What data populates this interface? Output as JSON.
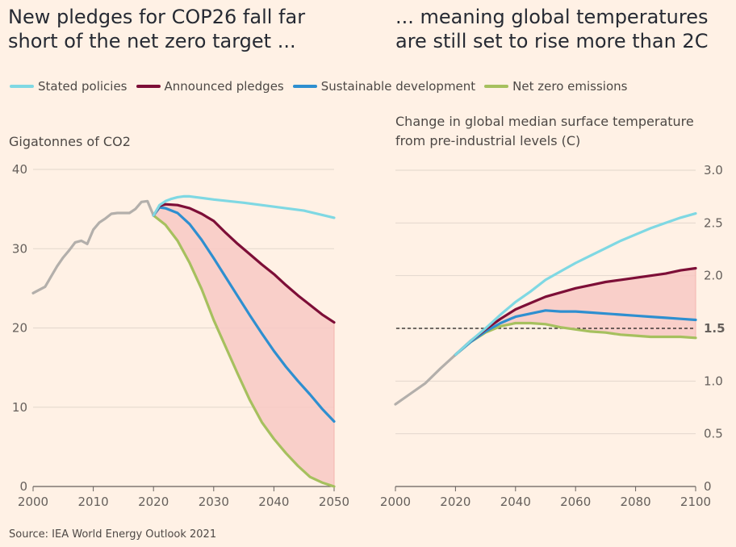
{
  "titles": {
    "left": "New pledges for COP26 fall far short of the net zero target ...",
    "right": "... meaning global temperatures are still set to rise more than 2C"
  },
  "legend": [
    {
      "label": "Stated policies",
      "color": "#7fd8e3"
    },
    {
      "label": "Announced pledges",
      "color": "#7d0e37"
    },
    {
      "label": "Sustainable development",
      "color": "#2e8fd0"
    },
    {
      "label": "Net zero emissions",
      "color": "#a6c05e"
    }
  ],
  "source": "Source: IEA World Energy Outlook 2021",
  "chart_data": [
    {
      "type": "line",
      "title": "New pledges for COP26 fall far short of the net zero target ...",
      "ylabel": "Gigatonnes of CO2",
      "xlim": [
        2000,
        2050
      ],
      "ylim": [
        0,
        40
      ],
      "xticks": [
        2000,
        2010,
        2020,
        2030,
        2040,
        2050
      ],
      "yticks": [
        0,
        10,
        20,
        30,
        40
      ],
      "grid": true,
      "shaded_band": {
        "between": [
          "Announced pledges",
          "Net zero emissions"
        ],
        "color": "#f8c9c4"
      },
      "series": [
        {
          "name": "Historical",
          "color": "#b3afab",
          "x": [
            2000,
            2001,
            2002,
            2003,
            2004,
            2005,
            2006,
            2007,
            2008,
            2009,
            2010,
            2011,
            2012,
            2013,
            2014,
            2015,
            2016,
            2017,
            2018,
            2019,
            2020
          ],
          "y": [
            24.4,
            24.8,
            25.2,
            26.5,
            27.8,
            28.9,
            29.8,
            30.8,
            31.0,
            30.6,
            32.4,
            33.3,
            33.8,
            34.4,
            34.5,
            34.5,
            34.5,
            35.0,
            35.9,
            36.0,
            34.2
          ]
        },
        {
          "name": "Stated policies",
          "color": "#7fd8e3",
          "x": [
            2020,
            2021,
            2022,
            2023,
            2024,
            2025,
            2026,
            2030,
            2035,
            2040,
            2045,
            2050
          ],
          "y": [
            34.2,
            35.5,
            36.0,
            36.3,
            36.5,
            36.6,
            36.6,
            36.2,
            35.8,
            35.3,
            34.8,
            33.9
          ]
        },
        {
          "name": "Announced pledges",
          "color": "#7d0e37",
          "x": [
            2020,
            2021,
            2022,
            2024,
            2026,
            2028,
            2030,
            2032,
            2034,
            2036,
            2038,
            2040,
            2042,
            2044,
            2046,
            2048,
            2050
          ],
          "y": [
            34.2,
            35.4,
            35.6,
            35.5,
            35.1,
            34.4,
            33.5,
            32.0,
            30.6,
            29.3,
            28.0,
            26.8,
            25.4,
            24.1,
            22.9,
            21.7,
            20.7
          ]
        },
        {
          "name": "Sustainable development",
          "color": "#2e8fd0",
          "x": [
            2020,
            2021,
            2022,
            2024,
            2026,
            2028,
            2030,
            2032,
            2034,
            2036,
            2038,
            2040,
            2042,
            2044,
            2046,
            2048,
            2050
          ],
          "y": [
            34.2,
            35.2,
            35.1,
            34.5,
            33.1,
            31.1,
            28.8,
            26.4,
            24.0,
            21.6,
            19.3,
            17.1,
            15.1,
            13.3,
            11.6,
            9.8,
            8.2
          ]
        },
        {
          "name": "Net zero emissions",
          "color": "#a6c05e",
          "x": [
            2020,
            2022,
            2024,
            2026,
            2028,
            2030,
            2032,
            2034,
            2036,
            2038,
            2040,
            2042,
            2044,
            2046,
            2048,
            2050
          ],
          "y": [
            34.2,
            33.0,
            31.0,
            28.2,
            24.9,
            21.0,
            17.6,
            14.2,
            10.9,
            8.1,
            6.0,
            4.2,
            2.6,
            1.2,
            0.5,
            0.0
          ]
        }
      ]
    },
    {
      "type": "line",
      "title": "... meaning global temperatures are still set to rise more than 2C",
      "ylabel": "Change in global median surface temperature from pre-industrial levels (C)",
      "xlim": [
        2000,
        2100
      ],
      "ylim": [
        0,
        3.0
      ],
      "xticks": [
        2000,
        2020,
        2040,
        2060,
        2080,
        2100
      ],
      "yticks": [
        0,
        0.5,
        1.0,
        1.5,
        2.0,
        2.5,
        3.0
      ],
      "ytick_labels": [
        "0",
        "0.5",
        "1.0",
        "1.5",
        "2.0",
        "2.5",
        "3.0"
      ],
      "highlight_tick": "1.5",
      "reference_line": {
        "y": 1.5,
        "style": "dashed"
      },
      "grid": true,
      "shaded_band": {
        "between": [
          "Announced pledges",
          "Net zero emissions"
        ],
        "color": "#f8c9c4"
      },
      "series": [
        {
          "name": "Historical",
          "color": "#b3afab",
          "x": [
            2000,
            2005,
            2010,
            2015,
            2020
          ],
          "y": [
            0.78,
            0.88,
            0.98,
            1.12,
            1.25
          ]
        },
        {
          "name": "Stated policies",
          "color": "#7fd8e3",
          "x": [
            2020,
            2025,
            2030,
            2035,
            2040,
            2045,
            2050,
            2055,
            2060,
            2065,
            2070,
            2075,
            2080,
            2085,
            2090,
            2095,
            2100
          ],
          "y": [
            1.25,
            1.38,
            1.5,
            1.63,
            1.75,
            1.85,
            1.96,
            2.04,
            2.12,
            2.19,
            2.26,
            2.33,
            2.39,
            2.45,
            2.5,
            2.55,
            2.59
          ]
        },
        {
          "name": "Announced pledges",
          "color": "#7d0e37",
          "x": [
            2020,
            2025,
            2030,
            2035,
            2040,
            2045,
            2050,
            2055,
            2060,
            2065,
            2070,
            2075,
            2080,
            2085,
            2090,
            2095,
            2100
          ],
          "y": [
            1.25,
            1.38,
            1.49,
            1.59,
            1.68,
            1.74,
            1.8,
            1.84,
            1.88,
            1.91,
            1.94,
            1.96,
            1.98,
            2.0,
            2.02,
            2.05,
            2.07
          ]
        },
        {
          "name": "Sustainable development",
          "color": "#2e8fd0",
          "x": [
            2020,
            2025,
            2030,
            2035,
            2040,
            2045,
            2050,
            2055,
            2060,
            2065,
            2070,
            2075,
            2080,
            2085,
            2090,
            2095,
            2100
          ],
          "y": [
            1.25,
            1.37,
            1.47,
            1.55,
            1.61,
            1.64,
            1.67,
            1.66,
            1.66,
            1.65,
            1.64,
            1.63,
            1.62,
            1.61,
            1.6,
            1.59,
            1.58
          ]
        },
        {
          "name": "Net zero emissions",
          "color": "#a6c05e",
          "x": [
            2020,
            2025,
            2030,
            2035,
            2040,
            2045,
            2050,
            2055,
            2060,
            2065,
            2070,
            2075,
            2080,
            2085,
            2090,
            2095,
            2100
          ],
          "y": [
            1.25,
            1.37,
            1.46,
            1.52,
            1.55,
            1.55,
            1.54,
            1.51,
            1.49,
            1.47,
            1.46,
            1.44,
            1.43,
            1.42,
            1.42,
            1.42,
            1.41
          ]
        }
      ]
    }
  ]
}
